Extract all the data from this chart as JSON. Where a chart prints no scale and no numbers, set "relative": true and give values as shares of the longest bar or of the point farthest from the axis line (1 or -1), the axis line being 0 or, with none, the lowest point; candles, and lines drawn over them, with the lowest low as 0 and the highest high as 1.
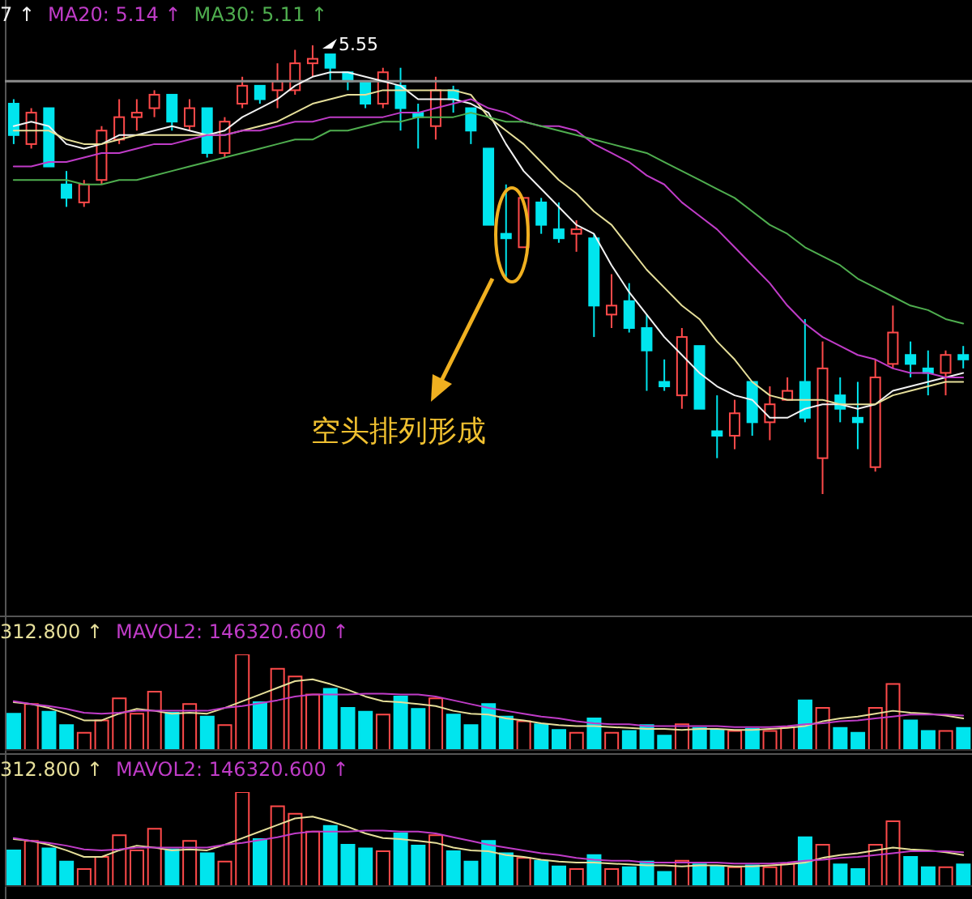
{
  "chart_data": [
    {
      "type": "candlestick",
      "relative": true,
      "categories": [
        null,
        null,
        null,
        null,
        null,
        null,
        null,
        null,
        null,
        null,
        null,
        null,
        null,
        null,
        null,
        null,
        null,
        null,
        null,
        null,
        null,
        null,
        null,
        null,
        null,
        null,
        null,
        null,
        null,
        null,
        null,
        null,
        null,
        null,
        null,
        null,
        null,
        null,
        null,
        null,
        null,
        null,
        null,
        null,
        null,
        null,
        null,
        null,
        null,
        null,
        null,
        null,
        null,
        null,
        null
      ],
      "annotations": [
        "空头排列形成",
        "5.55"
      ],
      "ref_lines": [
        {
          "axis": "y",
          "value": 0.92,
          "color": "#8c8c8c"
        }
      ],
      "series": [
        {
          "type": "candlestick",
          "ohlc": [
            [
              0.87,
              0.88,
              0.78,
              0.8
            ],
            [
              0.78,
              0.86,
              0.77,
              0.85
            ],
            [
              0.86,
              0.86,
              0.73,
              0.73
            ],
            [
              0.69,
              0.72,
              0.64,
              0.66
            ],
            [
              0.65,
              0.7,
              0.64,
              0.69
            ],
            [
              0.7,
              0.82,
              0.69,
              0.81
            ],
            [
              0.79,
              0.88,
              0.78,
              0.84
            ],
            [
              0.84,
              0.88,
              0.81,
              0.85
            ],
            [
              0.86,
              0.9,
              0.84,
              0.89
            ],
            [
              0.89,
              0.89,
              0.81,
              0.83
            ],
            [
              0.82,
              0.88,
              0.81,
              0.86
            ],
            [
              0.86,
              0.86,
              0.75,
              0.76
            ],
            [
              0.76,
              0.84,
              0.75,
              0.83
            ],
            [
              0.87,
              0.93,
              0.86,
              0.91
            ],
            [
              0.91,
              0.91,
              0.87,
              0.88
            ],
            [
              0.9,
              0.96,
              0.86,
              0.92
            ],
            [
              0.9,
              0.99,
              0.89,
              0.96
            ],
            [
              0.96,
              1,
              0.93,
              0.97
            ],
            [
              0.98,
              0.98,
              0.92,
              0.95
            ],
            [
              0.94,
              0.94,
              0.9,
              0.92
            ],
            [
              0.92,
              0.92,
              0.86,
              0.87
            ],
            [
              0.87,
              0.95,
              0.86,
              0.94
            ],
            [
              0.91,
              0.95,
              0.81,
              0.86
            ],
            [
              0.85,
              0.87,
              0.77,
              0.84
            ],
            [
              0.82,
              0.93,
              0.79,
              0.9
            ],
            [
              0.9,
              0.91,
              0.85,
              0.88
            ],
            [
              0.86,
              0.86,
              0.78,
              0.81
            ],
            [
              0.77,
              0.77,
              0.6,
              0.6
            ],
            [
              0.58,
              0.69,
              0.48,
              0.57
            ],
            [
              0.55,
              0.66,
              0.55,
              0.66
            ],
            [
              0.65,
              0.66,
              0.58,
              0.6
            ],
            [
              0.59,
              0.65,
              0.56,
              0.57
            ],
            [
              0.58,
              0.61,
              0.54,
              0.59
            ],
            [
              0.57,
              0.58,
              0.35,
              0.42
            ],
            [
              0.4,
              0.49,
              0.37,
              0.42
            ],
            [
              0.43,
              0.47,
              0.36,
              0.37
            ],
            [
              0.37,
              0.4,
              0.23,
              0.32
            ],
            [
              0.25,
              0.3,
              0.23,
              0.24
            ],
            [
              0.22,
              0.37,
              0.19,
              0.35
            ],
            [
              0.33,
              0.33,
              0.19,
              0.19
            ],
            [
              0.14,
              0.22,
              0.08,
              0.13
            ],
            [
              0.13,
              0.21,
              0.1,
              0.18
            ],
            [
              0.25,
              0.25,
              0.13,
              0.16
            ],
            [
              0.16,
              0.24,
              0.12,
              0.2
            ],
            [
              0.21,
              0.26,
              0.21,
              0.23
            ],
            [
              0.25,
              0.39,
              0.16,
              0.17
            ],
            [
              0.08,
              0.34,
              0,
              0.28
            ],
            [
              0.22,
              0.26,
              0.16,
              0.19
            ],
            [
              0.17,
              0.25,
              0.1,
              0.16
            ],
            [
              0.06,
              0.3,
              0.05,
              0.26
            ],
            [
              0.29,
              0.42,
              0.28,
              0.36
            ],
            [
              0.31,
              0.34,
              0.26,
              0.29
            ],
            [
              0.28,
              0.32,
              0.22,
              0.27
            ],
            [
              0.27,
              0.32,
              0.22,
              0.31
            ],
            [
              0.31,
              0.33,
              0.28,
              0.3
            ]
          ],
          "colors": [
            "#00e5ee",
            "#ff4a4a",
            "#00e5ee",
            "#00e5ee",
            "#ff4a4a",
            "#ff4a4a",
            "#ff4a4a",
            "#ff4a4a",
            "#ff4a4a",
            "#00e5ee",
            "#ff4a4a",
            "#00e5ee",
            "#ff4a4a",
            "#ff4a4a",
            "#00e5ee",
            "#ff4a4a",
            "#ff4a4a",
            "#ff4a4a",
            "#00e5ee",
            "#00e5ee",
            "#00e5ee",
            "#ff4a4a",
            "#00e5ee",
            "#00e5ee",
            "#ff4a4a",
            "#00e5ee",
            "#00e5ee",
            "#00e5ee",
            "#00e5ee",
            "#ff4a4a",
            "#00e5ee",
            "#00e5ee",
            "#ff4a4a",
            "#00e5ee",
            "#ff4a4a",
            "#00e5ee",
            "#00e5ee",
            "#00e5ee",
            "#ff4a4a",
            "#00e5ee",
            "#00e5ee",
            "#ff4a4a",
            "#00e5ee",
            "#ff4a4a",
            "#ff4a4a",
            "#00e5ee",
            "#ff4a4a",
            "#00e5ee",
            "#00e5ee",
            "#ff4a4a",
            "#ff4a4a",
            "#00e5ee",
            "#00e5ee",
            "#ff4a4a",
            "#00e5ee"
          ]
        },
        {
          "type": "line",
          "name": "7 ↑",
          "color": "#f2f2f2",
          "values": [
            0.82,
            0.83,
            0.82,
            0.78,
            0.77,
            0.78,
            0.8,
            0.8,
            0.81,
            0.82,
            0.81,
            0.8,
            0.81,
            0.84,
            0.86,
            0.88,
            0.91,
            0.93,
            0.94,
            0.94,
            0.93,
            0.92,
            0.91,
            0.88,
            0.88,
            0.88,
            0.87,
            0.85,
            0.78,
            0.72,
            0.68,
            0.64,
            0.6,
            0.58,
            0.51,
            0.45,
            0.4,
            0.35,
            0.31,
            0.27,
            0.24,
            0.22,
            0.21,
            0.17,
            0.17,
            0.19,
            0.2,
            0.2,
            0.19,
            0.2,
            0.23,
            0.24,
            0.25,
            0.26,
            0.27
          ]
        },
        {
          "type": "line",
          "color": "#e6df9a",
          "values": [
            0.81,
            0.81,
            0.81,
            0.79,
            0.78,
            0.78,
            0.79,
            0.8,
            0.8,
            0.8,
            0.8,
            0.8,
            0.8,
            0.81,
            0.82,
            0.83,
            0.85,
            0.87,
            0.88,
            0.89,
            0.89,
            0.9,
            0.9,
            0.9,
            0.9,
            0.9,
            0.89,
            0.84,
            0.81,
            0.78,
            0.74,
            0.7,
            0.67,
            0.63,
            0.6,
            0.55,
            0.5,
            0.46,
            0.42,
            0.39,
            0.34,
            0.3,
            0.25,
            0.22,
            0.21,
            0.21,
            0.21,
            0.2,
            0.2,
            0.2,
            0.22,
            0.23,
            0.24,
            0.25,
            0.25
          ]
        },
        {
          "type": "line",
          "name": "MA20: 5.14 ↑",
          "color": "#c03cc8",
          "values": [
            0.73,
            0.73,
            0.74,
            0.74,
            0.75,
            0.76,
            0.76,
            0.77,
            0.78,
            0.78,
            0.79,
            0.8,
            0.8,
            0.81,
            0.81,
            0.82,
            0.83,
            0.83,
            0.84,
            0.84,
            0.84,
            0.84,
            0.85,
            0.85,
            0.86,
            0.87,
            0.88,
            0.86,
            0.85,
            0.83,
            0.82,
            0.82,
            0.81,
            0.78,
            0.76,
            0.74,
            0.71,
            0.69,
            0.65,
            0.62,
            0.59,
            0.55,
            0.51,
            0.47,
            0.42,
            0.38,
            0.35,
            0.33,
            0.31,
            0.3,
            0.28,
            0.27,
            0.27,
            0.26,
            0.26
          ]
        },
        {
          "type": "line",
          "name": "MA30: 5.11 ↑",
          "color": "#4fae4f",
          "values": [
            0.7,
            0.7,
            0.7,
            0.7,
            0.69,
            0.69,
            0.7,
            0.7,
            0.71,
            0.72,
            0.73,
            0.74,
            0.75,
            0.76,
            0.77,
            0.78,
            0.79,
            0.79,
            0.81,
            0.81,
            0.82,
            0.83,
            0.83,
            0.84,
            0.84,
            0.84,
            0.85,
            0.84,
            0.83,
            0.83,
            0.82,
            0.81,
            0.8,
            0.79,
            0.78,
            0.77,
            0.76,
            0.74,
            0.72,
            0.7,
            0.68,
            0.66,
            0.63,
            0.6,
            0.58,
            0.55,
            0.53,
            0.51,
            0.48,
            0.46,
            0.44,
            0.42,
            0.41,
            0.39,
            0.38
          ]
        }
      ]
    },
    {
      "type": "bar",
      "relative": true,
      "categories": [
        null,
        null,
        null,
        null,
        null,
        null,
        null,
        null,
        null,
        null,
        null,
        null,
        null,
        null,
        null,
        null,
        null,
        null,
        null,
        null,
        null,
        null,
        null,
        null,
        null,
        null,
        null,
        null,
        null,
        null,
        null,
        null,
        null,
        null,
        null,
        null,
        null,
        null,
        null,
        null,
        null,
        null,
        null,
        null,
        null,
        null,
        null,
        null,
        null,
        null,
        null,
        null,
        null,
        null,
        null
      ],
      "series": [
        {
          "type": "bar",
          "values": [
            0.38,
            0.48,
            0.4,
            0.26,
            0.18,
            0.31,
            0.54,
            0.38,
            0.61,
            0.39,
            0.48,
            0.35,
            0.26,
            1,
            0.5,
            0.85,
            0.77,
            0.58,
            0.64,
            0.44,
            0.4,
            0.37,
            0.56,
            0.43,
            0.54,
            0.37,
            0.26,
            0.48,
            0.35,
            0.3,
            0.27,
            0.21,
            0.18,
            0.33,
            0.18,
            0.2,
            0.26,
            0.15,
            0.27,
            0.23,
            0.21,
            0.2,
            0.22,
            0.2,
            0.24,
            0.52,
            0.44,
            0.23,
            0.18,
            0.44,
            0.69,
            0.31,
            0.2,
            0.2,
            0.23
          ],
          "colors": [
            "#00e5ee",
            "#ff4a4a",
            "#00e5ee",
            "#00e5ee",
            "#ff4a4a",
            "#ff4a4a",
            "#ff4a4a",
            "#ff4a4a",
            "#ff4a4a",
            "#00e5ee",
            "#ff4a4a",
            "#00e5ee",
            "#ff4a4a",
            "#ff4a4a",
            "#00e5ee",
            "#ff4a4a",
            "#ff4a4a",
            "#ff4a4a",
            "#00e5ee",
            "#00e5ee",
            "#00e5ee",
            "#ff4a4a",
            "#00e5ee",
            "#00e5ee",
            "#ff4a4a",
            "#00e5ee",
            "#00e5ee",
            "#00e5ee",
            "#00e5ee",
            "#ff4a4a",
            "#00e5ee",
            "#00e5ee",
            "#ff4a4a",
            "#00e5ee",
            "#ff4a4a",
            "#00e5ee",
            "#00e5ee",
            "#00e5ee",
            "#ff4a4a",
            "#00e5ee",
            "#00e5ee",
            "#ff4a4a",
            "#00e5ee",
            "#ff4a4a",
            "#ff4a4a",
            "#00e5ee",
            "#ff4a4a",
            "#00e5ee",
            "#00e5ee",
            "#ff4a4a",
            "#ff4a4a",
            "#00e5ee",
            "#00e5ee",
            "#ff4a4a",
            "#00e5ee"
          ]
        },
        {
          "type": "line",
          "name": "312.800 ↑",
          "color": "#e6df9a",
          "values": [
            0.5,
            0.48,
            0.44,
            0.38,
            0.31,
            0.31,
            0.38,
            0.43,
            0.41,
            0.38,
            0.39,
            0.38,
            0.44,
            0.51,
            0.58,
            0.65,
            0.72,
            0.74,
            0.69,
            0.63,
            0.56,
            0.51,
            0.5,
            0.48,
            0.46,
            0.41,
            0.38,
            0.37,
            0.33,
            0.31,
            0.28,
            0.26,
            0.25,
            0.25,
            0.24,
            0.23,
            0.22,
            0.22,
            0.21,
            0.22,
            0.22,
            0.21,
            0.21,
            0.22,
            0.23,
            0.25,
            0.3,
            0.33,
            0.35,
            0.38,
            0.41,
            0.39,
            0.38,
            0.36,
            0.33
          ]
        },
        {
          "type": "line",
          "name": "MAVOL2: 146320.600 ↑",
          "color": "#c03cc8",
          "values": [
            0.51,
            0.48,
            0.46,
            0.43,
            0.39,
            0.38,
            0.39,
            0.41,
            0.41,
            0.41,
            0.41,
            0.41,
            0.44,
            0.46,
            0.49,
            0.52,
            0.56,
            0.58,
            0.58,
            0.58,
            0.59,
            0.59,
            0.58,
            0.58,
            0.56,
            0.52,
            0.48,
            0.44,
            0.41,
            0.38,
            0.35,
            0.33,
            0.3,
            0.28,
            0.27,
            0.27,
            0.25,
            0.25,
            0.25,
            0.25,
            0.25,
            0.24,
            0.24,
            0.24,
            0.25,
            0.27,
            0.28,
            0.3,
            0.31,
            0.33,
            0.35,
            0.37,
            0.37,
            0.37,
            0.36
          ]
        }
      ]
    },
    {
      "type": "bar",
      "relative": true,
      "categories": [
        null,
        null,
        null,
        null,
        null,
        null,
        null,
        null,
        null,
        null,
        null,
        null,
        null,
        null,
        null,
        null,
        null,
        null,
        null,
        null,
        null,
        null,
        null,
        null,
        null,
        null,
        null,
        null,
        null,
        null,
        null,
        null,
        null,
        null,
        null,
        null,
        null,
        null,
        null,
        null,
        null,
        null,
        null,
        null,
        null,
        null,
        null,
        null,
        null,
        null,
        null,
        null,
        null,
        null,
        null
      ],
      "series": [
        {
          "type": "bar",
          "values": [
            0.38,
            0.48,
            0.4,
            0.26,
            0.18,
            0.31,
            0.54,
            0.38,
            0.61,
            0.39,
            0.48,
            0.35,
            0.26,
            1,
            0.5,
            0.85,
            0.77,
            0.58,
            0.64,
            0.44,
            0.4,
            0.37,
            0.56,
            0.43,
            0.54,
            0.37,
            0.26,
            0.48,
            0.35,
            0.3,
            0.27,
            0.21,
            0.18,
            0.33,
            0.18,
            0.2,
            0.26,
            0.15,
            0.27,
            0.23,
            0.21,
            0.2,
            0.22,
            0.2,
            0.24,
            0.52,
            0.44,
            0.23,
            0.18,
            0.44,
            0.69,
            0.31,
            0.2,
            0.2,
            0.23
          ],
          "colors": [
            "#00e5ee",
            "#ff4a4a",
            "#00e5ee",
            "#00e5ee",
            "#ff4a4a",
            "#ff4a4a",
            "#ff4a4a",
            "#ff4a4a",
            "#ff4a4a",
            "#00e5ee",
            "#ff4a4a",
            "#00e5ee",
            "#ff4a4a",
            "#ff4a4a",
            "#00e5ee",
            "#ff4a4a",
            "#ff4a4a",
            "#ff4a4a",
            "#00e5ee",
            "#00e5ee",
            "#00e5ee",
            "#ff4a4a",
            "#00e5ee",
            "#00e5ee",
            "#ff4a4a",
            "#00e5ee",
            "#00e5ee",
            "#00e5ee",
            "#00e5ee",
            "#ff4a4a",
            "#00e5ee",
            "#00e5ee",
            "#ff4a4a",
            "#00e5ee",
            "#ff4a4a",
            "#00e5ee",
            "#00e5ee",
            "#00e5ee",
            "#ff4a4a",
            "#00e5ee",
            "#00e5ee",
            "#ff4a4a",
            "#00e5ee",
            "#ff4a4a",
            "#ff4a4a",
            "#00e5ee",
            "#ff4a4a",
            "#00e5ee",
            "#00e5ee",
            "#ff4a4a",
            "#ff4a4a",
            "#00e5ee",
            "#00e5ee",
            "#ff4a4a",
            "#00e5ee"
          ]
        },
        {
          "type": "line",
          "name": "312.800 ↑",
          "color": "#e6df9a",
          "values": [
            0.5,
            0.48,
            0.44,
            0.38,
            0.31,
            0.31,
            0.38,
            0.43,
            0.41,
            0.38,
            0.39,
            0.38,
            0.44,
            0.51,
            0.58,
            0.65,
            0.72,
            0.74,
            0.69,
            0.63,
            0.56,
            0.51,
            0.5,
            0.48,
            0.46,
            0.41,
            0.38,
            0.37,
            0.33,
            0.31,
            0.28,
            0.26,
            0.25,
            0.25,
            0.24,
            0.23,
            0.22,
            0.22,
            0.21,
            0.22,
            0.22,
            0.21,
            0.21,
            0.22,
            0.23,
            0.25,
            0.3,
            0.33,
            0.35,
            0.38,
            0.41,
            0.39,
            0.38,
            0.36,
            0.33
          ]
        },
        {
          "type": "line",
          "name": "MAVOL2: 146320.600 ↑",
          "color": "#c03cc8",
          "values": [
            0.51,
            0.48,
            0.46,
            0.43,
            0.39,
            0.38,
            0.39,
            0.41,
            0.41,
            0.41,
            0.41,
            0.41,
            0.44,
            0.46,
            0.49,
            0.52,
            0.56,
            0.58,
            0.58,
            0.58,
            0.59,
            0.59,
            0.58,
            0.58,
            0.56,
            0.52,
            0.48,
            0.44,
            0.41,
            0.38,
            0.35,
            0.33,
            0.3,
            0.28,
            0.27,
            0.27,
            0.25,
            0.25,
            0.25,
            0.25,
            0.25,
            0.24,
            0.24,
            0.24,
            0.25,
            0.27,
            0.28,
            0.3,
            0.31,
            0.33,
            0.35,
            0.37,
            0.37,
            0.37,
            0.36
          ]
        }
      ]
    }
  ]
}
